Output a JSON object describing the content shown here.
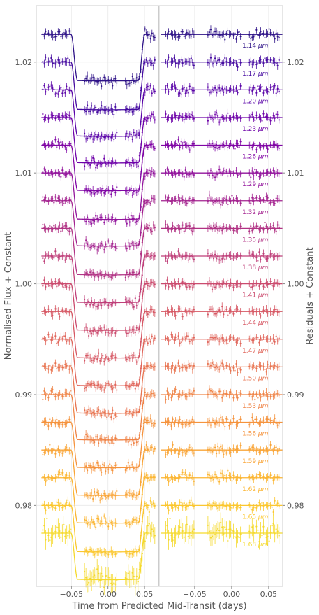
{
  "chart_data": {
    "type": "scatter",
    "xlabel": "Time from Predicted Mid-Transit (days)",
    "ylabel_left": "Normalised Flux + Constant",
    "ylabel_right": "Residuals + Constant",
    "panels": [
      {
        "name": "light-curves",
        "xlim": [
          -0.098,
          0.069
        ],
        "xticks": [
          -0.05,
          0.0,
          0.05
        ],
        "xtick_labels": [
          "−0.05",
          "0.00",
          "0.05"
        ]
      },
      {
        "name": "residuals",
        "xlim": [
          -0.098,
          0.069
        ],
        "xticks": [
          -0.05,
          0.0,
          0.05
        ],
        "xtick_labels": [
          "−0.05",
          "0.00",
          "0.05"
        ]
      }
    ],
    "ylim": [
      0.9727,
      1.0251
    ],
    "yticks": [
      0.98,
      0.99,
      1.0,
      1.01,
      1.02
    ],
    "ytick_labels": [
      "0.98",
      "0.99",
      "1.00",
      "1.01",
      "1.02"
    ],
    "grid": true,
    "observation_windows": [
      [
        -0.09,
        -0.05
      ],
      [
        -0.033,
        0.013
      ],
      [
        0.023,
        0.065
      ]
    ],
    "ingress_egress": {
      "contact1": -0.0515,
      "contact2": -0.0425,
      "contact3": 0.0415,
      "contact4": 0.0505
    },
    "series": [
      {
        "wavelength": "1.14",
        "baseline": 1.0225,
        "depth": 0.0042,
        "color": "#2e1287",
        "noise": 0.0003
      },
      {
        "wavelength": "1.17",
        "baseline": 1.02,
        "depth": 0.0043,
        "color": "#450aa0",
        "noise": 0.0003
      },
      {
        "wavelength": "1.20",
        "baseline": 1.0175,
        "depth": 0.0042,
        "color": "#5a04a8",
        "noise": 0.0003
      },
      {
        "wavelength": "1.23",
        "baseline": 1.015,
        "depth": 0.0041,
        "color": "#6d01a8",
        "noise": 0.0003
      },
      {
        "wavelength": "1.26",
        "baseline": 1.0125,
        "depth": 0.0041,
        "color": "#8006a5",
        "noise": 0.0003
      },
      {
        "wavelength": "1.29",
        "baseline": 1.01,
        "depth": 0.0042,
        "color": "#92149c",
        "noise": 0.0003
      },
      {
        "wavelength": "1.32",
        "baseline": 1.0075,
        "depth": 0.0041,
        "color": "#a3228f",
        "noise": 0.0003
      },
      {
        "wavelength": "1.35",
        "baseline": 1.005,
        "depth": 0.0042,
        "color": "#b13284",
        "noise": 0.0003
      },
      {
        "wavelength": "1.38",
        "baseline": 1.0025,
        "depth": 0.0042,
        "color": "#bf3f79",
        "noise": 0.0003
      },
      {
        "wavelength": "1.41",
        "baseline": 1.0,
        "depth": 0.0042,
        "color": "#cb4b6e",
        "noise": 0.0003
      },
      {
        "wavelength": "1.44",
        "baseline": 0.9975,
        "depth": 0.0042,
        "color": "#d65763",
        "noise": 0.0003
      },
      {
        "wavelength": "1.47",
        "baseline": 0.995,
        "depth": 0.0042,
        "color": "#e0655a",
        "noise": 0.0003
      },
      {
        "wavelength": "1.50",
        "baseline": 0.9925,
        "depth": 0.0042,
        "color": "#e8734f",
        "noise": 0.0003
      },
      {
        "wavelength": "1.53",
        "baseline": 0.99,
        "depth": 0.0041,
        "color": "#ef8346",
        "noise": 0.0003
      },
      {
        "wavelength": "1.56",
        "baseline": 0.9875,
        "depth": 0.0041,
        "color": "#f5933d",
        "noise": 0.0003
      },
      {
        "wavelength": "1.59",
        "baseline": 0.985,
        "depth": 0.0041,
        "color": "#f9a436",
        "noise": 0.0003
      },
      {
        "wavelength": "1.62",
        "baseline": 0.9825,
        "depth": 0.0041,
        "color": "#fbb531",
        "noise": 0.0003
      },
      {
        "wavelength": "1.65",
        "baseline": 0.98,
        "depth": 0.0042,
        "color": "#fbc72f",
        "noise": 0.0003
      },
      {
        "wavelength": "1.68",
        "baseline": 0.9775,
        "depth": 0.0042,
        "color": "#f5d92b",
        "noise": 0.0007
      }
    ],
    "wavelength_unit": "μm"
  }
}
